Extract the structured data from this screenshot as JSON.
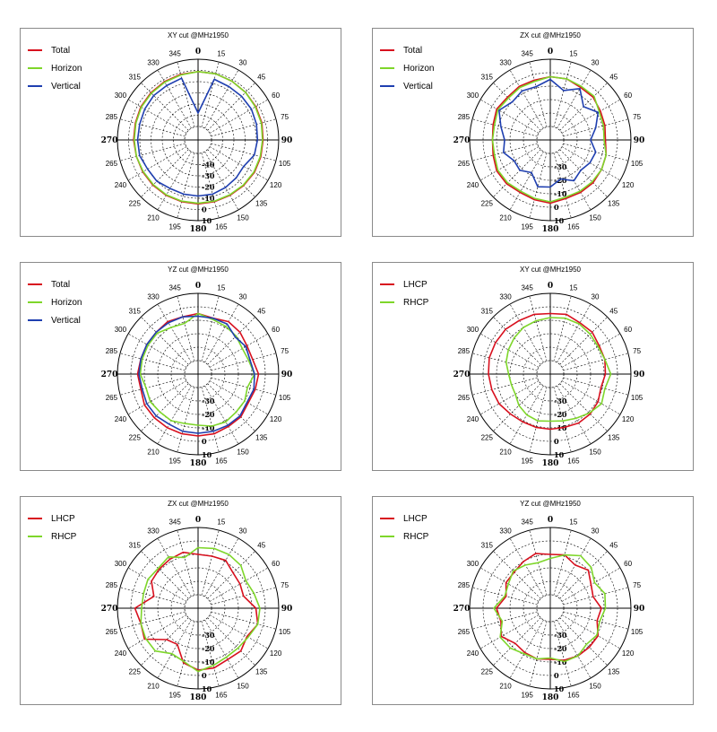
{
  "colors": {
    "red": "#d8101e",
    "green": "#7ed62a",
    "blue": "#1f3fb0"
  },
  "chart_data": [
    {
      "type": "polar-line",
      "title": "XY cut @MHz1950",
      "angle_ticks": [
        "0",
        "15",
        "30",
        "45",
        "60",
        "75",
        "90",
        "105",
        "120",
        "135",
        "150",
        "165",
        "180",
        "195",
        "210",
        "225",
        "240",
        "265",
        "270",
        "285",
        "300",
        "315",
        "330",
        "345"
      ],
      "radial_ticks": [
        "-40",
        "-30",
        "-20",
        "-10",
        "0",
        "10"
      ],
      "rlim": [
        -50,
        10
      ],
      "series": [
        {
          "name": "Total",
          "color": "red",
          "values": [
            -1,
            -1,
            -1.5,
            -2,
            -2.5,
            -3,
            -4,
            -4,
            -4,
            -4.5,
            -5,
            -5,
            -5,
            -5,
            -5,
            -5,
            -5,
            -5,
            -4.5,
            -4,
            -3,
            -2.5,
            -2,
            -1.5
          ]
        },
        {
          "name": "Horizon",
          "color": "green",
          "values": [
            -1,
            -1,
            -1.5,
            -2,
            -3,
            -3.5,
            -4.5,
            -4.5,
            -4.5,
            -5,
            -5.5,
            -5.5,
            -5.5,
            -5.5,
            -5.5,
            -5.5,
            -5.5,
            -5,
            -5,
            -4.5,
            -3.5,
            -3,
            -2.5,
            -2
          ]
        },
        {
          "name": "Vertical",
          "color": "blue",
          "values": [
            -38,
            -6,
            -7,
            -7,
            -7,
            -8,
            -9,
            -10,
            -15,
            -14,
            -13,
            -12,
            -12,
            -12,
            -12,
            -10,
            -10,
            -8,
            -8,
            -8,
            -7,
            -6,
            -6,
            -5
          ]
        }
      ]
    },
    {
      "type": "polar-line",
      "title": "ZX cut @MHz1950",
      "angle_ticks": [
        "0",
        "15",
        "30",
        "45",
        "60",
        "75",
        "90",
        "105",
        "120",
        "135",
        "150",
        "165",
        "180",
        "195",
        "210",
        "225",
        "240",
        "265",
        "270",
        "285",
        "300",
        "315",
        "330",
        "345"
      ],
      "radial_ticks": [
        "-30",
        "-20",
        "-10",
        "0",
        "10"
      ],
      "rlim": [
        -40,
        10
      ],
      "series": [
        {
          "name": "Total",
          "color": "red",
          "values": [
            -3,
            -3,
            -5,
            -5,
            -7,
            -8,
            -9,
            -7,
            -6,
            -5,
            -5,
            -5,
            -3,
            -4,
            -5,
            -4,
            -4,
            -6,
            -7,
            -6,
            -4,
            -5,
            -4,
            -4
          ]
        },
        {
          "name": "Horizon",
          "color": "green",
          "values": [
            -3,
            -3,
            -4,
            -4,
            -8,
            -9,
            -10,
            -7,
            -6,
            -6,
            -6,
            -6,
            -4,
            -5,
            -6,
            -5,
            -5,
            -7,
            -7,
            -7,
            -5,
            -6,
            -5,
            -5
          ]
        },
        {
          "name": "Vertical",
          "color": "blue",
          "values": [
            -5,
            -12,
            -6,
            -15,
            -9,
            -15,
            -20,
            -15,
            -16,
            -18,
            -15,
            -20,
            -15,
            -14,
            -22,
            -18,
            -19,
            -14,
            -16,
            -12,
            -6,
            -10,
            -8,
            -9
          ]
        }
      ]
    },
    {
      "type": "polar-line",
      "title": "YZ cut @MHz1950",
      "angle_ticks": [
        "0",
        "15",
        "30",
        "45",
        "60",
        "75",
        "90",
        "105",
        "120",
        "135",
        "150",
        "165",
        "180",
        "195",
        "210",
        "225",
        "240",
        "265",
        "270",
        "285",
        "300",
        "315",
        "330",
        "345"
      ],
      "radial_ticks": [
        "-30",
        "-20",
        "-10",
        "0",
        "10"
      ],
      "rlim": [
        -40,
        10
      ],
      "series": [
        {
          "name": "Total",
          "color": "red",
          "values": [
            -5,
            -7,
            -5,
            -6,
            -8,
            -8,
            -5,
            -6,
            -7,
            -5,
            -5,
            -4,
            -4,
            -4,
            -4,
            -4,
            -4,
            -6,
            -5,
            -6,
            -6,
            -6,
            -5,
            -6
          ]
        },
        {
          "name": "Horizon",
          "color": "green",
          "values": [
            -5,
            -8,
            -9,
            -10,
            -12,
            -11,
            -8,
            -12,
            -10,
            -10,
            -9,
            -10,
            -12,
            -12,
            -10,
            -10,
            -9,
            -10,
            -7,
            -7,
            -7,
            -7,
            -10,
            -11
          ]
        },
        {
          "name": "Vertical",
          "color": "blue",
          "values": [
            -7,
            -7,
            -7,
            -11,
            -9,
            -10,
            -8,
            -7,
            -8,
            -6,
            -6,
            -6,
            -6,
            -6,
            -7,
            -6,
            -6,
            -7,
            -6,
            -6,
            -6,
            -6,
            -6,
            -6
          ]
        }
      ]
    },
    {
      "type": "polar-line",
      "title": "XY cut @MHz1950",
      "angle_ticks": [
        "0",
        "15",
        "30",
        "45",
        "60",
        "75",
        "90",
        "105",
        "120",
        "135",
        "150",
        "165",
        "180",
        "195",
        "210",
        "225",
        "240",
        "265",
        "270",
        "285",
        "300",
        "315",
        "330",
        "345"
      ],
      "radial_ticks": [
        "-30",
        "-20",
        "-10",
        "0",
        "10"
      ],
      "rlim": [
        -40,
        10
      ],
      "series": [
        {
          "name": "LHCP",
          "color": "red",
          "values": [
            -5,
            -4,
            -6,
            -6,
            -8,
            -8,
            -9,
            -11,
            -9,
            -8,
            -8,
            -9,
            -9,
            -9,
            -9,
            -8,
            -6,
            -5,
            -4,
            -3,
            -3,
            -3,
            -4,
            -4
          ]
        },
        {
          "name": "RHCP",
          "color": "green",
          "values": [
            -8,
            -7,
            -7,
            -8,
            -9,
            -8,
            -5,
            -8,
            -6,
            -9,
            -12,
            -14,
            -15,
            -14,
            -15,
            -17,
            -20,
            -20,
            -19,
            -16,
            -14,
            -12,
            -10,
            -9
          ]
        }
      ]
    },
    {
      "type": "polar-line",
      "title": "ZX cut @MHz1950",
      "angle_ticks": [
        "0",
        "15",
        "30",
        "45",
        "60",
        "75",
        "90",
        "105",
        "120",
        "135",
        "150",
        "165",
        "180",
        "195",
        "210",
        "225",
        "240",
        "265",
        "270",
        "285",
        "300",
        "315",
        "330",
        "345"
      ],
      "radial_ticks": [
        "-30",
        "-20",
        "-10",
        "0",
        "10"
      ],
      "rlim": [
        -40,
        10
      ],
      "series": [
        {
          "name": "LHCP",
          "color": "red",
          "values": [
            -10,
            -10,
            -9,
            -13,
            -14,
            -15,
            -7,
            -4,
            -8,
            -5,
            -6,
            -4,
            -4,
            -8,
            -19,
            -17,
            -4,
            -6,
            -3,
            -16,
            -10,
            -9,
            -8,
            -7
          ]
        },
        {
          "name": "RHCP",
          "color": "green",
          "values": [
            -5,
            -4,
            -4,
            -5,
            -9,
            -7,
            -4,
            -4,
            -7,
            -8,
            -8,
            -6,
            -3,
            -9,
            -11,
            -5,
            -5,
            -6,
            -8,
            -8,
            -7,
            -8,
            -6,
            -11
          ]
        }
      ]
    },
    {
      "type": "polar-line",
      "title": "YZ cut @MHz1950",
      "angle_ticks": [
        "0",
        "15",
        "30",
        "45",
        "60",
        "75",
        "90",
        "105",
        "120",
        "135",
        "150",
        "165",
        "180",
        "195",
        "210",
        "225",
        "240",
        "265",
        "270",
        "285",
        "300",
        "315",
        "330",
        "345"
      ],
      "radial_ticks": [
        "-30",
        "-20",
        "-10",
        "0",
        "10"
      ],
      "rlim": [
        -40,
        10
      ],
      "series": [
        {
          "name": "LHCP",
          "color": "red",
          "values": [
            -10,
            -9,
            -13,
            -10,
            -15,
            -17,
            -12,
            -14,
            -9,
            -9,
            -9,
            -10,
            -12,
            -11,
            -12,
            -13,
            -8,
            -12,
            -10,
            -16,
            -12,
            -12,
            -10,
            -8
          ]
        },
        {
          "name": "RHCP",
          "color": "green",
          "values": [
            -13,
            -9,
            -5,
            -7,
            -12,
            -8,
            -9,
            -12,
            -10,
            -12,
            -9,
            -9,
            -13,
            -11,
            -11,
            -8,
            -7,
            -13,
            -8,
            -15,
            -14,
            -11,
            -13,
            -15
          ]
        }
      ]
    }
  ]
}
